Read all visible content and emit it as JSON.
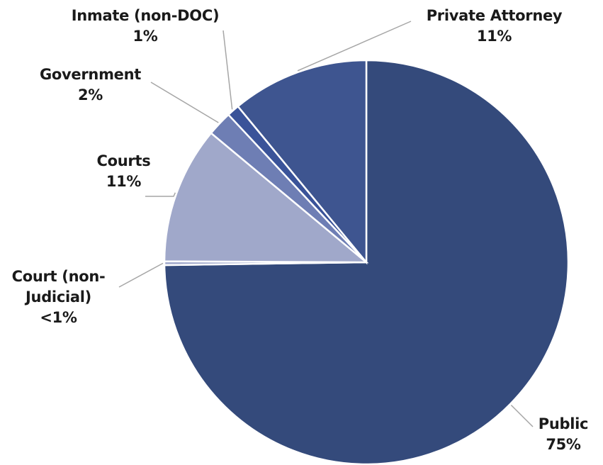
{
  "chart_data": {
    "type": "pie",
    "categories": [
      "Public",
      "Court (non-Judicial)",
      "Courts",
      "Government",
      "Inmate (non-DOC)",
      "Private Attorney"
    ],
    "values": [
      75,
      0.3,
      11,
      2,
      1,
      11
    ],
    "value_labels": [
      "75%",
      "<1%",
      "11%",
      "2%",
      "1%",
      "11%"
    ],
    "colors": [
      "#344a7b",
      "#a3abcd",
      "#a0a8ca",
      "#6e7eb4",
      "#3a5399",
      "#3e5590"
    ]
  }
}
